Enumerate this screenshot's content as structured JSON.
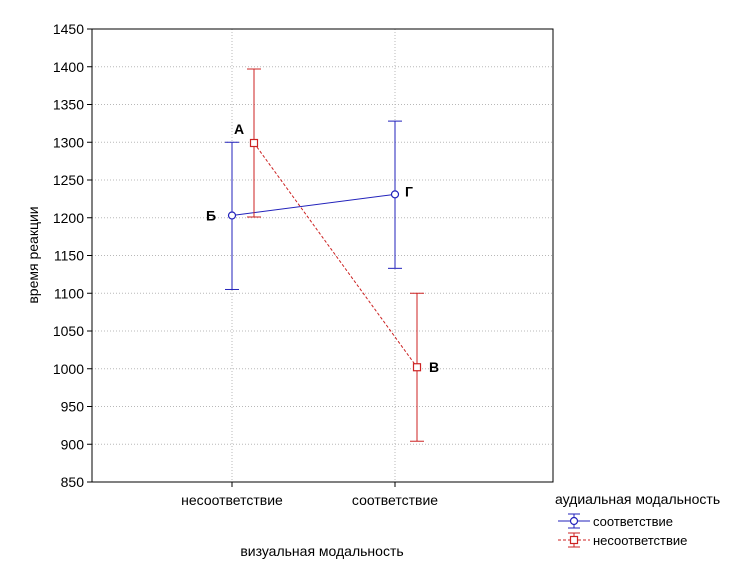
{
  "chart_data": {
    "type": "line",
    "title": "",
    "xlabel": "визуальная модальность",
    "ylabel": "время реакции",
    "categories": [
      "несоответствие",
      "соответствие"
    ],
    "ylim": [
      850,
      1450
    ],
    "yticks": [
      850,
      900,
      950,
      1000,
      1050,
      1100,
      1150,
      1200,
      1250,
      1300,
      1350,
      1400,
      1450
    ],
    "grid": true,
    "legend": {
      "title": "аудиальная модальность",
      "position": "bottom-right outside"
    },
    "series": [
      {
        "name": "соответствие",
        "color": "#2222bb",
        "line_style": "solid",
        "marker": "circle",
        "values": [
          1203,
          1231
        ],
        "error_low": [
          1105,
          1133
        ],
        "error_high": [
          1300,
          1328
        ],
        "point_labels": [
          "Б",
          "Г"
        ]
      },
      {
        "name": "несоответствие",
        "color": "#cc2222",
        "line_style": "dashed",
        "marker": "square",
        "values": [
          1299,
          1002
        ],
        "error_low": [
          1201,
          904
        ],
        "error_high": [
          1397,
          1100
        ],
        "point_labels": [
          "А",
          "В"
        ]
      }
    ]
  }
}
